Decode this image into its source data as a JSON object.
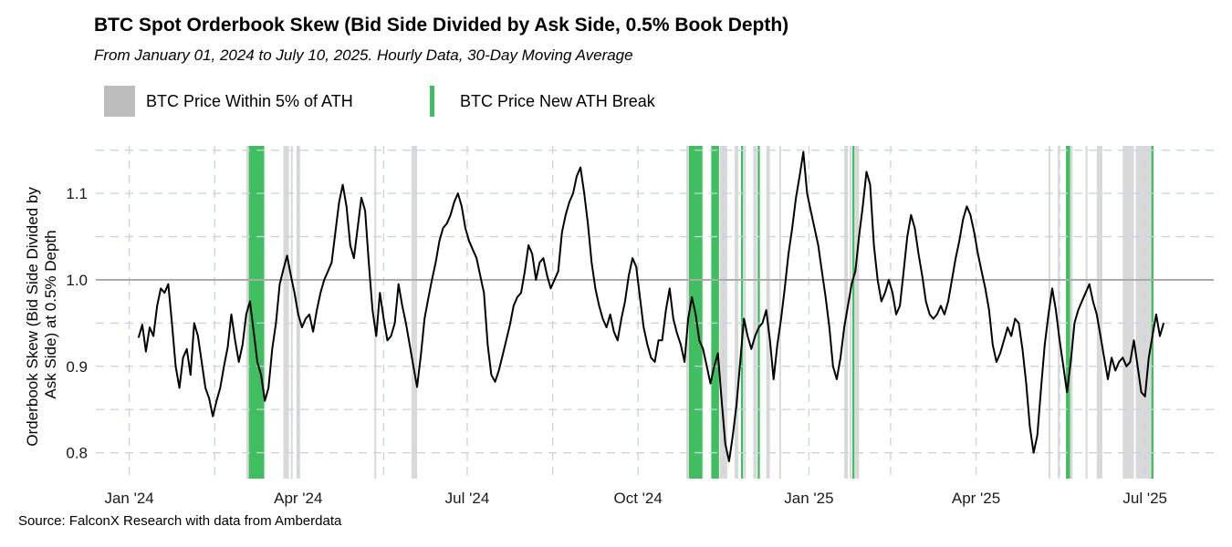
{
  "chart_data": {
    "type": "line",
    "title": "BTC Spot Orderbook Skew (Bid Side Divided by Ask Side, 0.5% Book Depth)",
    "subtitle": "From January 01, 2024 to July 10, 2025. Hourly Data, 30-Day Moving Average",
    "ylabel_lines": [
      "Orderbook Skew (Bid Side Divided by",
      "Ask Side) at 0.5% Depth"
    ],
    "xlabel": "",
    "x_ticks": [
      {
        "label": "Jan '24",
        "day": 0
      },
      {
        "label": "Apr '24",
        "day": 91
      },
      {
        "label": "Jul '24",
        "day": 182
      },
      {
        "label": "Oct '24",
        "day": 274
      },
      {
        "label": "Jan '25",
        "day": 366
      },
      {
        "label": "Apr '25",
        "day": 456
      },
      {
        "label": "Jul '25",
        "day": 547
      }
    ],
    "x_range_days": [
      -18,
      584
    ],
    "ylim": [
      0.77,
      1.155
    ],
    "y_ticks": [
      0.8,
      0.9,
      1.0,
      1.1
    ],
    "reference_line": 1.0,
    "legend": [
      {
        "label": "BTC Price Within 5% of ATH",
        "color": "#bdbdbd"
      },
      {
        "label": "BTC Price New ATH Break",
        "color": "#3fbf5f"
      }
    ],
    "ath_zone_periods_days": [
      [
        63,
        67
      ],
      [
        69,
        71
      ],
      [
        72,
        73
      ],
      [
        83,
        86
      ],
      [
        87,
        88
      ],
      [
        90,
        92
      ],
      [
        132,
        133
      ],
      [
        152,
        155
      ],
      [
        300,
        309
      ],
      [
        318,
        322
      ],
      [
        326,
        328
      ],
      [
        331,
        332
      ],
      [
        336,
        338
      ],
      [
        343,
        345
      ],
      [
        350,
        351
      ],
      [
        385,
        387
      ],
      [
        388,
        389
      ],
      [
        391,
        393
      ],
      [
        495,
        496
      ],
      [
        500,
        501
      ],
      [
        505,
        508
      ],
      [
        515,
        516
      ],
      [
        521,
        524
      ],
      [
        535,
        541
      ],
      [
        542,
        551
      ]
    ],
    "ath_break_days": [
      65,
      66,
      67,
      68,
      69,
      70,
      71,
      72,
      302,
      303,
      304,
      305,
      306,
      307,
      308,
      314,
      315,
      316,
      317,
      330,
      339,
      390,
      505,
      506,
      551
    ],
    "series": [
      {
        "name": "BTC Spot Orderbook Skew (30D MA)",
        "color": "#000000",
        "points": [
          [
            5,
            0.933
          ],
          [
            7,
            0.948
          ],
          [
            9,
            0.917
          ],
          [
            11,
            0.945
          ],
          [
            13,
            0.935
          ],
          [
            15,
            0.97
          ],
          [
            17,
            0.99
          ],
          [
            19,
            0.985
          ],
          [
            21,
            0.995
          ],
          [
            23,
            0.95
          ],
          [
            25,
            0.9
          ],
          [
            27,
            0.875
          ],
          [
            29,
            0.91
          ],
          [
            31,
            0.92
          ],
          [
            33,
            0.89
          ],
          [
            35,
            0.95
          ],
          [
            37,
            0.935
          ],
          [
            39,
            0.905
          ],
          [
            41,
            0.875
          ],
          [
            43,
            0.863
          ],
          [
            45,
            0.842
          ],
          [
            47,
            0.86
          ],
          [
            49,
            0.875
          ],
          [
            51,
            0.9
          ],
          [
            53,
            0.922
          ],
          [
            55,
            0.96
          ],
          [
            57,
            0.93
          ],
          [
            59,
            0.905
          ],
          [
            61,
            0.925
          ],
          [
            63,
            0.96
          ],
          [
            65,
            0.975
          ],
          [
            67,
            0.94
          ],
          [
            69,
            0.905
          ],
          [
            71,
            0.89
          ],
          [
            73,
            0.86
          ],
          [
            75,
            0.875
          ],
          [
            77,
            0.92
          ],
          [
            79,
            0.95
          ],
          [
            81,
            0.995
          ],
          [
            83,
            1.012
          ],
          [
            85,
            1.028
          ],
          [
            87,
            1.005
          ],
          [
            89,
            0.985
          ],
          [
            91,
            0.96
          ],
          [
            93,
            0.945
          ],
          [
            95,
            0.955
          ],
          [
            97,
            0.96
          ],
          [
            99,
            0.94
          ],
          [
            101,
            0.965
          ],
          [
            103,
            0.985
          ],
          [
            105,
            1.0
          ],
          [
            107,
            1.01
          ],
          [
            109,
            1.02
          ],
          [
            111,
            1.055
          ],
          [
            113,
            1.09
          ],
          [
            115,
            1.11
          ],
          [
            117,
            1.085
          ],
          [
            119,
            1.04
          ],
          [
            121,
            1.025
          ],
          [
            123,
            1.06
          ],
          [
            125,
            1.095
          ],
          [
            127,
            1.08
          ],
          [
            129,
            1.02
          ],
          [
            131,
            0.965
          ],
          [
            133,
            0.935
          ],
          [
            135,
            0.985
          ],
          [
            137,
            0.955
          ],
          [
            139,
            0.93
          ],
          [
            141,
            0.935
          ],
          [
            143,
            0.95
          ],
          [
            145,
            0.995
          ],
          [
            147,
            0.97
          ],
          [
            149,
            0.95
          ],
          [
            151,
            0.925
          ],
          [
            153,
            0.9
          ],
          [
            155,
            0.876
          ],
          [
            157,
            0.912
          ],
          [
            159,
            0.955
          ],
          [
            161,
            0.978
          ],
          [
            163,
            1.0
          ],
          [
            165,
            1.02
          ],
          [
            167,
            1.045
          ],
          [
            169,
            1.06
          ],
          [
            171,
            1.065
          ],
          [
            173,
            1.075
          ],
          [
            175,
            1.09
          ],
          [
            177,
            1.1
          ],
          [
            179,
            1.085
          ],
          [
            181,
            1.06
          ],
          [
            183,
            1.045
          ],
          [
            185,
            1.035
          ],
          [
            187,
            1.025
          ],
          [
            189,
            1.005
          ],
          [
            191,
            0.985
          ],
          [
            193,
            0.925
          ],
          [
            195,
            0.89
          ],
          [
            197,
            0.882
          ],
          [
            199,
            0.895
          ],
          [
            201,
            0.912
          ],
          [
            203,
            0.93
          ],
          [
            205,
            0.948
          ],
          [
            207,
            0.97
          ],
          [
            209,
            0.98
          ],
          [
            211,
            0.985
          ],
          [
            213,
            1.01
          ],
          [
            215,
            1.04
          ],
          [
            217,
            1.03
          ],
          [
            219,
            1.0
          ],
          [
            221,
            1.02
          ],
          [
            223,
            1.025
          ],
          [
            225,
            1.005
          ],
          [
            227,
            0.99
          ],
          [
            229,
            1.0
          ],
          [
            231,
            1.01
          ],
          [
            233,
            1.055
          ],
          [
            235,
            1.075
          ],
          [
            237,
            1.09
          ],
          [
            239,
            1.1
          ],
          [
            241,
            1.12
          ],
          [
            243,
            1.13
          ],
          [
            245,
            1.1
          ],
          [
            247,
            1.065
          ],
          [
            249,
            1.02
          ],
          [
            251,
            0.99
          ],
          [
            253,
            0.97
          ],
          [
            255,
            0.955
          ],
          [
            257,
            0.945
          ],
          [
            259,
            0.96
          ],
          [
            261,
            0.94
          ],
          [
            263,
            0.93
          ],
          [
            265,
            0.955
          ],
          [
            267,
            0.975
          ],
          [
            269,
            1.005
          ],
          [
            271,
            1.025
          ],
          [
            273,
            1.015
          ],
          [
            275,
            0.98
          ],
          [
            277,
            0.945
          ],
          [
            279,
            0.925
          ],
          [
            281,
            0.91
          ],
          [
            283,
            0.905
          ],
          [
            285,
            0.93
          ],
          [
            287,
            0.93
          ],
          [
            289,
            0.965
          ],
          [
            291,
            0.99
          ],
          [
            293,
            0.955
          ],
          [
            295,
            0.938
          ],
          [
            297,
            0.925
          ],
          [
            299,
            0.905
          ],
          [
            301,
            0.955
          ],
          [
            303,
            0.98
          ],
          [
            305,
            0.96
          ],
          [
            307,
            0.93
          ],
          [
            309,
            0.92
          ],
          [
            311,
            0.9
          ],
          [
            313,
            0.88
          ],
          [
            315,
            0.9
          ],
          [
            317,
            0.915
          ],
          [
            319,
            0.86
          ],
          [
            321,
            0.81
          ],
          [
            323,
            0.79
          ],
          [
            325,
            0.82
          ],
          [
            327,
            0.855
          ],
          [
            329,
            0.905
          ],
          [
            331,
            0.955
          ],
          [
            333,
            0.935
          ],
          [
            335,
            0.92
          ],
          [
            337,
            0.935
          ],
          [
            339,
            0.945
          ],
          [
            341,
            0.95
          ],
          [
            343,
            0.965
          ],
          [
            345,
            0.93
          ],
          [
            347,
            0.885
          ],
          [
            349,
            0.925
          ],
          [
            351,
            0.955
          ],
          [
            353,
            0.99
          ],
          [
            355,
            1.03
          ],
          [
            357,
            1.06
          ],
          [
            359,
            1.095
          ],
          [
            361,
            1.12
          ],
          [
            363,
            1.148
          ],
          [
            365,
            1.1
          ],
          [
            367,
            1.08
          ],
          [
            369,
            1.06
          ],
          [
            371,
            1.04
          ],
          [
            373,
            1.01
          ],
          [
            375,
            0.98
          ],
          [
            377,
            0.945
          ],
          [
            379,
            0.9
          ],
          [
            381,
            0.885
          ],
          [
            383,
            0.91
          ],
          [
            385,
            0.945
          ],
          [
            387,
            0.97
          ],
          [
            389,
            0.995
          ],
          [
            391,
            1.01
          ],
          [
            393,
            1.05
          ],
          [
            395,
            1.085
          ],
          [
            397,
            1.125
          ],
          [
            399,
            1.11
          ],
          [
            401,
            1.04
          ],
          [
            403,
            1.0
          ],
          [
            405,
            0.975
          ],
          [
            407,
            0.985
          ],
          [
            409,
            1.0
          ],
          [
            411,
            0.985
          ],
          [
            413,
            0.96
          ],
          [
            415,
            0.97
          ],
          [
            417,
            1.01
          ],
          [
            419,
            1.05
          ],
          [
            421,
            1.075
          ],
          [
            423,
            1.06
          ],
          [
            425,
            1.03
          ],
          [
            427,
            1.005
          ],
          [
            429,
            0.975
          ],
          [
            431,
            0.96
          ],
          [
            433,
            0.955
          ],
          [
            435,
            0.96
          ],
          [
            437,
            0.97
          ],
          [
            439,
            0.96
          ],
          [
            441,
            0.975
          ],
          [
            443,
            1.0
          ],
          [
            445,
            1.025
          ],
          [
            447,
            1.045
          ],
          [
            449,
            1.07
          ],
          [
            451,
            1.085
          ],
          [
            453,
            1.075
          ],
          [
            455,
            1.055
          ],
          [
            457,
            1.03
          ],
          [
            459,
            1.01
          ],
          [
            461,
            0.99
          ],
          [
            463,
            0.965
          ],
          [
            465,
            0.925
          ],
          [
            467,
            0.905
          ],
          [
            469,
            0.915
          ],
          [
            471,
            0.93
          ],
          [
            473,
            0.945
          ],
          [
            475,
            0.935
          ],
          [
            477,
            0.955
          ],
          [
            479,
            0.95
          ],
          [
            481,
            0.92
          ],
          [
            483,
            0.88
          ],
          [
            485,
            0.83
          ],
          [
            487,
            0.8
          ],
          [
            489,
            0.82
          ],
          [
            491,
            0.875
          ],
          [
            493,
            0.925
          ],
          [
            495,
            0.96
          ],
          [
            497,
            0.99
          ],
          [
            499,
            0.965
          ],
          [
            501,
            0.93
          ],
          [
            503,
            0.9
          ],
          [
            505,
            0.87
          ],
          [
            507,
            0.905
          ],
          [
            509,
            0.95
          ],
          [
            511,
            0.965
          ],
          [
            513,
            0.975
          ],
          [
            515,
            0.985
          ],
          [
            517,
            0.995
          ],
          [
            519,
            0.975
          ],
          [
            521,
            0.96
          ],
          [
            523,
            0.935
          ],
          [
            525,
            0.91
          ],
          [
            527,
            0.885
          ],
          [
            529,
            0.91
          ],
          [
            531,
            0.895
          ],
          [
            533,
            0.905
          ],
          [
            535,
            0.91
          ],
          [
            537,
            0.9
          ],
          [
            539,
            0.905
          ],
          [
            541,
            0.93
          ],
          [
            543,
            0.9
          ],
          [
            545,
            0.87
          ],
          [
            547,
            0.865
          ],
          [
            549,
            0.91
          ],
          [
            551,
            0.935
          ],
          [
            553,
            0.96
          ],
          [
            555,
            0.935
          ],
          [
            557,
            0.95
          ]
        ]
      }
    ]
  },
  "source": "Source: FalconX Research with data from Amberdata"
}
